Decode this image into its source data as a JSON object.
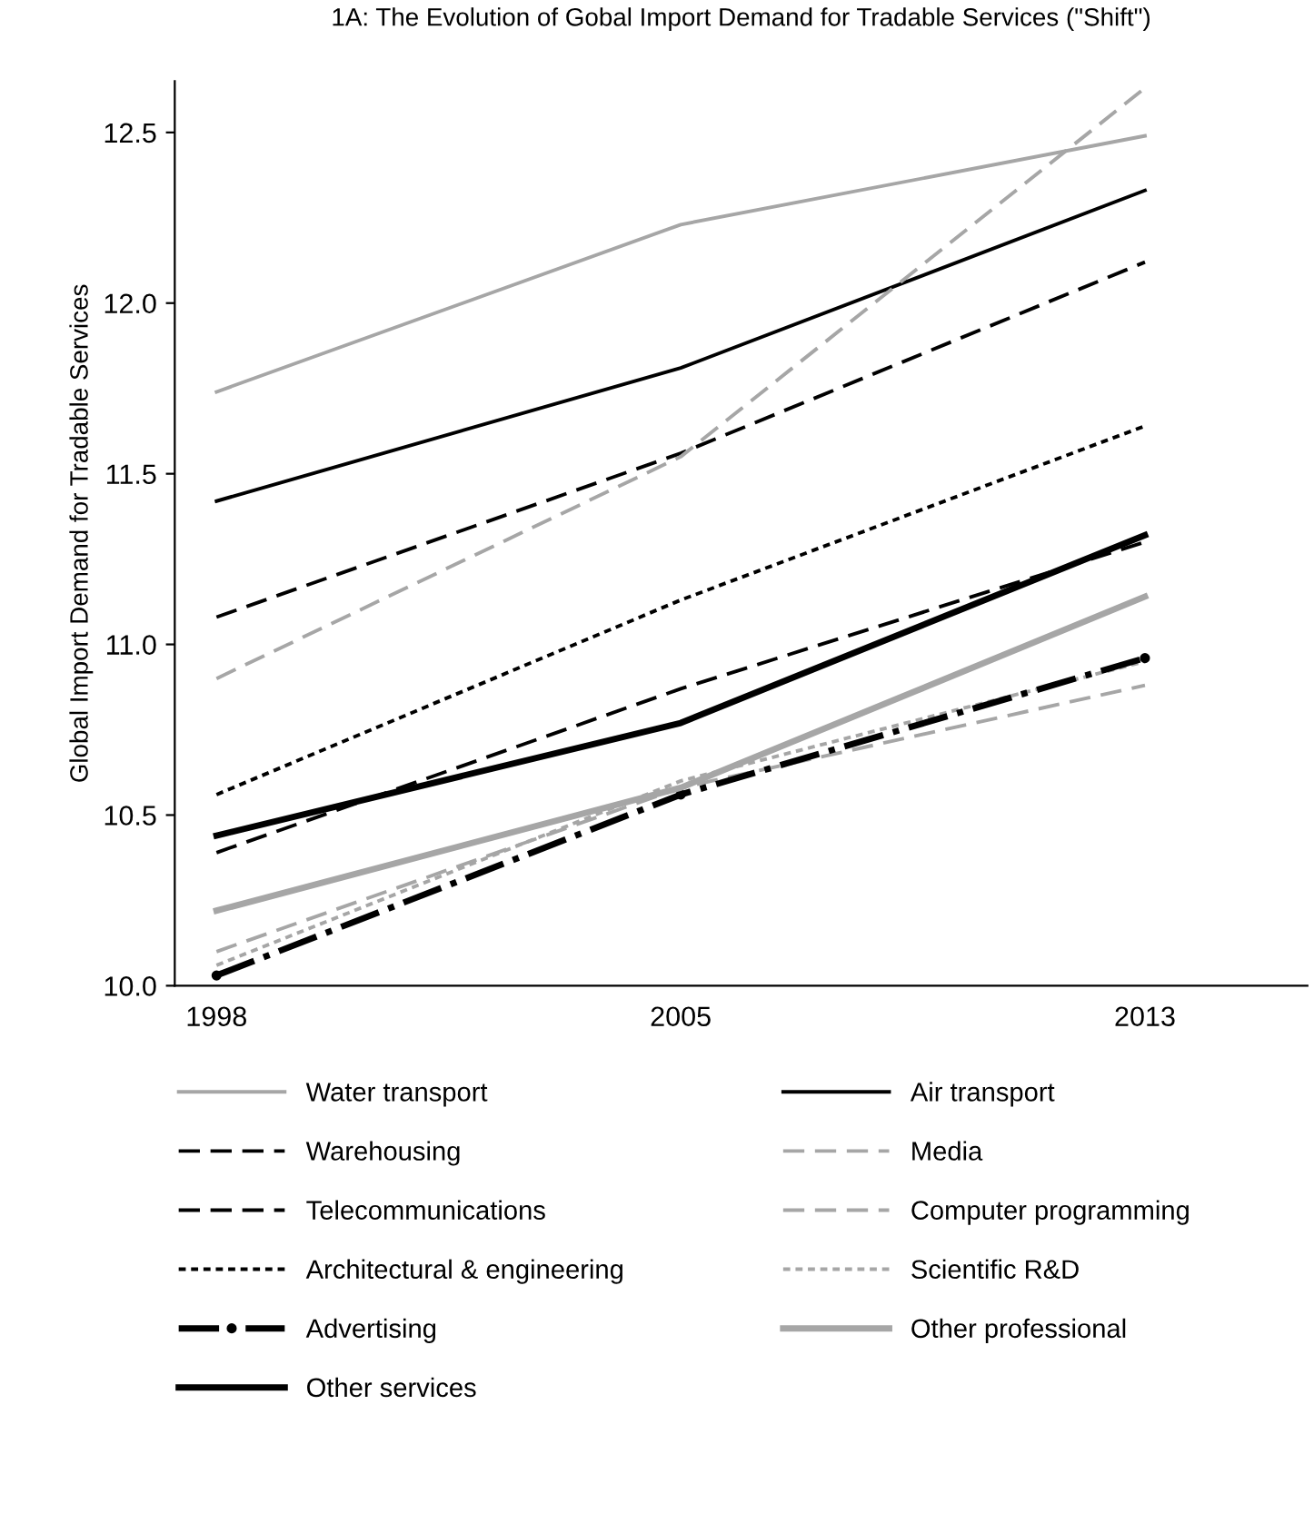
{
  "chart_data": {
    "type": "line",
    "title": "1A: The Evolution of Gobal Import Demand for Tradable Services (\"Shift\")",
    "ylabel": "Global Import Demand for Tradable Services",
    "categories": [
      "1998",
      "2005",
      "2013"
    ],
    "ylim": [
      10,
      12.65
    ],
    "yticks": [
      {
        "value": 10,
        "label": "10.0"
      },
      {
        "value": 10.5,
        "label": "10.5"
      },
      {
        "value": 11,
        "label": "11.0"
      },
      {
        "value": 11.5,
        "label": "11.5"
      },
      {
        "value": 12,
        "label": "12.0"
      },
      {
        "value": 12.5,
        "label": "12.5"
      }
    ],
    "grid": false,
    "legend": "bottom",
    "marker": "none",
    "series": [
      {
        "name": "Water transport",
        "color": "#a6a6a6",
        "line_style": "solid",
        "values": [
          11.74,
          12.23,
          12.49
        ]
      },
      {
        "name": "Air transport",
        "color": "#000000",
        "line_style": "solid",
        "values": [
          11.42,
          11.81,
          12.33
        ]
      },
      {
        "name": "Warehousing",
        "color": "#000000",
        "line_style": "dashed",
        "values": [
          11.08,
          11.56,
          12.12
        ]
      },
      {
        "name": "Media",
        "color": "#a6a6a6",
        "line_style": "dashed",
        "values": [
          10.1,
          10.58,
          10.88
        ]
      },
      {
        "name": "Telecommunications",
        "color": "#000000",
        "line_style": "dashed",
        "values": [
          10.39,
          10.87,
          11.3
        ]
      },
      {
        "name": "Computer programming",
        "color": "#a6a6a6",
        "line_style": "dashed",
        "values": [
          10.9,
          11.55,
          12.63
        ]
      },
      {
        "name": "Architectural & engineering",
        "color": "#000000",
        "line_style": "dotted",
        "values": [
          10.56,
          11.13,
          11.64
        ]
      },
      {
        "name": "Scientific R&D",
        "color": "#a6a6a6",
        "line_style": "dotted",
        "values": [
          10.06,
          10.6,
          10.95
        ]
      },
      {
        "name": "Advertising",
        "color": "#000000",
        "line_style": "dashdot",
        "marker": "circle",
        "values": [
          10.03,
          10.56,
          10.96
        ]
      },
      {
        "name": "Other professional",
        "color": "#a6a6a6",
        "line_style": "solid",
        "values": [
          10.22,
          10.58,
          11.14
        ]
      },
      {
        "name": "Other services",
        "color": "#000000",
        "line_style": "solid",
        "values": [
          10.44,
          10.77,
          11.32
        ]
      }
    ]
  }
}
